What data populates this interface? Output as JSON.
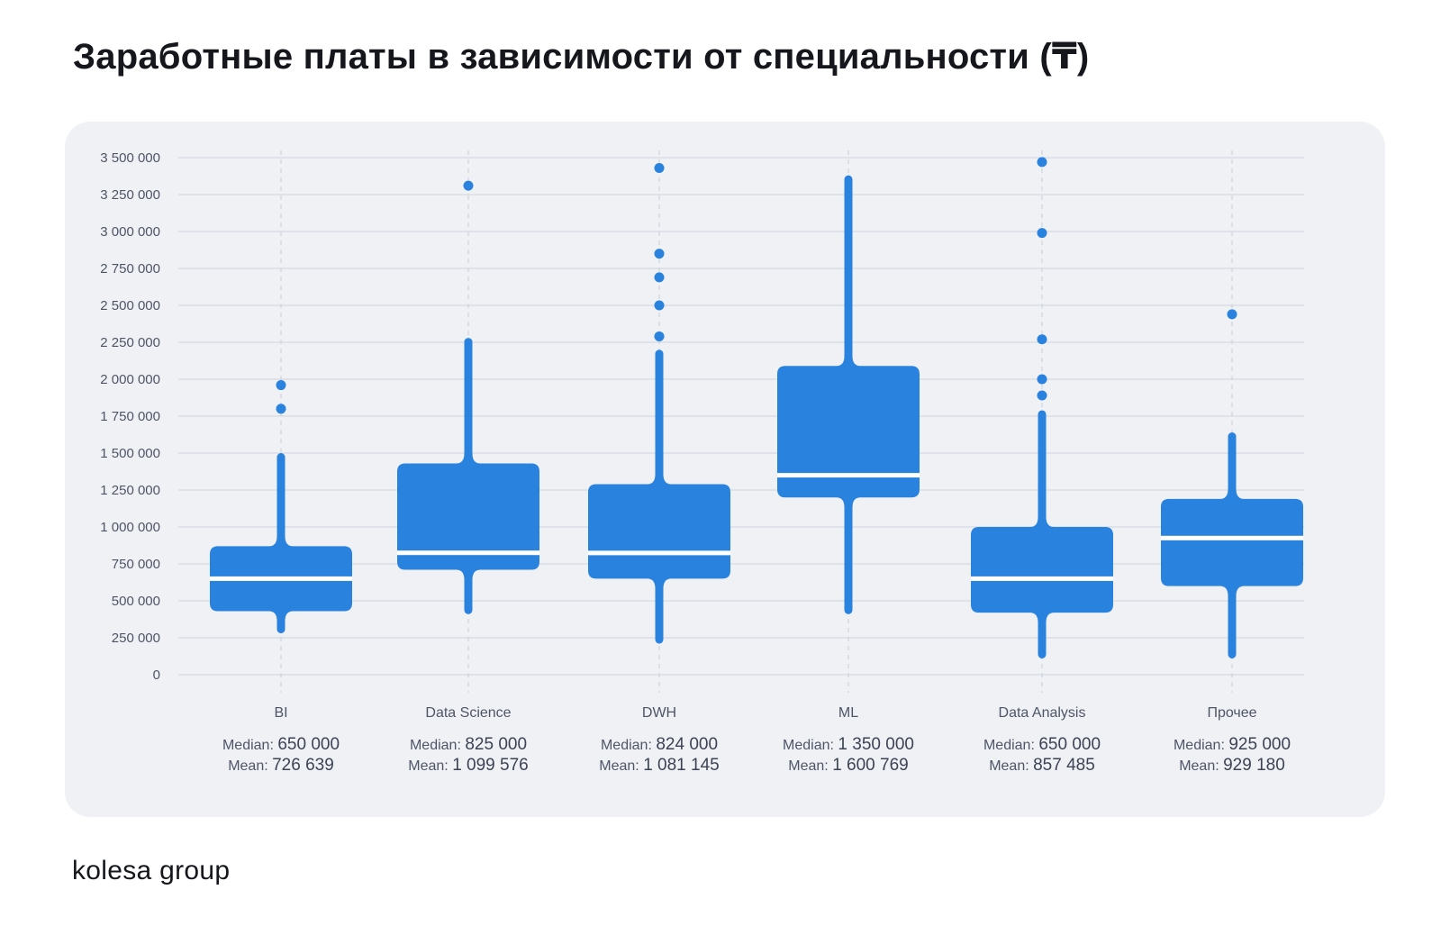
{
  "title": "Заработные платы в зависимости от специальности (₸)",
  "logo": "kolesa group",
  "colors": {
    "box": "#2a82df",
    "median": "#ffffff",
    "grid": "#cfd3dc",
    "panel": "#eff1f5"
  },
  "labels": {
    "median": "Median:",
    "mean": "Mean:"
  },
  "chart_data": {
    "type": "box",
    "xlabel": "",
    "ylabel": "",
    "ylim": [
      0,
      3500000
    ],
    "y_ticks": [
      0,
      250000,
      500000,
      750000,
      1000000,
      1250000,
      1500000,
      1750000,
      2000000,
      2250000,
      2500000,
      2750000,
      3000000,
      3250000,
      3500000
    ],
    "y_tick_labels": [
      "0",
      "250 000",
      "500 000",
      "750 000",
      "1 000 000",
      "1 250 000",
      "1 500 000",
      "1 750 000",
      "2 000 000",
      "2 250 000",
      "2 500 000",
      "2 750 000",
      "3 000 000",
      "3 250 000",
      "3 500 000"
    ],
    "grid": true,
    "categories": [
      "BI",
      "Data Science",
      "DWH",
      "ML",
      "Data Analysis",
      "Прочее"
    ],
    "boxes": [
      {
        "category": "BI",
        "whisker_low": 280000,
        "q1": 430000,
        "median": 650000,
        "q3": 870000,
        "whisker_high": 1500000,
        "outliers": [
          1960000,
          1800000
        ],
        "median_label": "650 000",
        "mean_label": "726 639"
      },
      {
        "category": "Data Science",
        "whisker_low": 410000,
        "q1": 710000,
        "median": 825000,
        "q3": 1430000,
        "whisker_high": 2280000,
        "outliers": [
          3310000
        ],
        "median_label": "825 000",
        "mean_label": "1 099 576"
      },
      {
        "category": "DWH",
        "whisker_low": 210000,
        "q1": 650000,
        "median": 824000,
        "q3": 1290000,
        "whisker_high": 2200000,
        "outliers": [
          3430000,
          2850000,
          2690000,
          2500000,
          2290000
        ],
        "median_label": "824 000",
        "mean_label": "1 081 145"
      },
      {
        "category": "ML",
        "whisker_low": 410000,
        "q1": 1200000,
        "median": 1350000,
        "q3": 2090000,
        "whisker_high": 3380000,
        "outliers": [],
        "median_label": "1 350 000",
        "mean_label": "1 600 769"
      },
      {
        "category": "Data Analysis",
        "whisker_low": 110000,
        "q1": 420000,
        "median": 650000,
        "q3": 1000000,
        "whisker_high": 1790000,
        "outliers": [
          3470000,
          2990000,
          2270000,
          2000000,
          1890000
        ],
        "median_label": "650 000",
        "mean_label": "857 485"
      },
      {
        "category": "Прочее",
        "whisker_low": 110000,
        "q1": 600000,
        "median": 925000,
        "q3": 1190000,
        "whisker_high": 1640000,
        "outliers": [
          2440000
        ],
        "median_label": "925 000",
        "mean_label": "929 180"
      }
    ]
  }
}
